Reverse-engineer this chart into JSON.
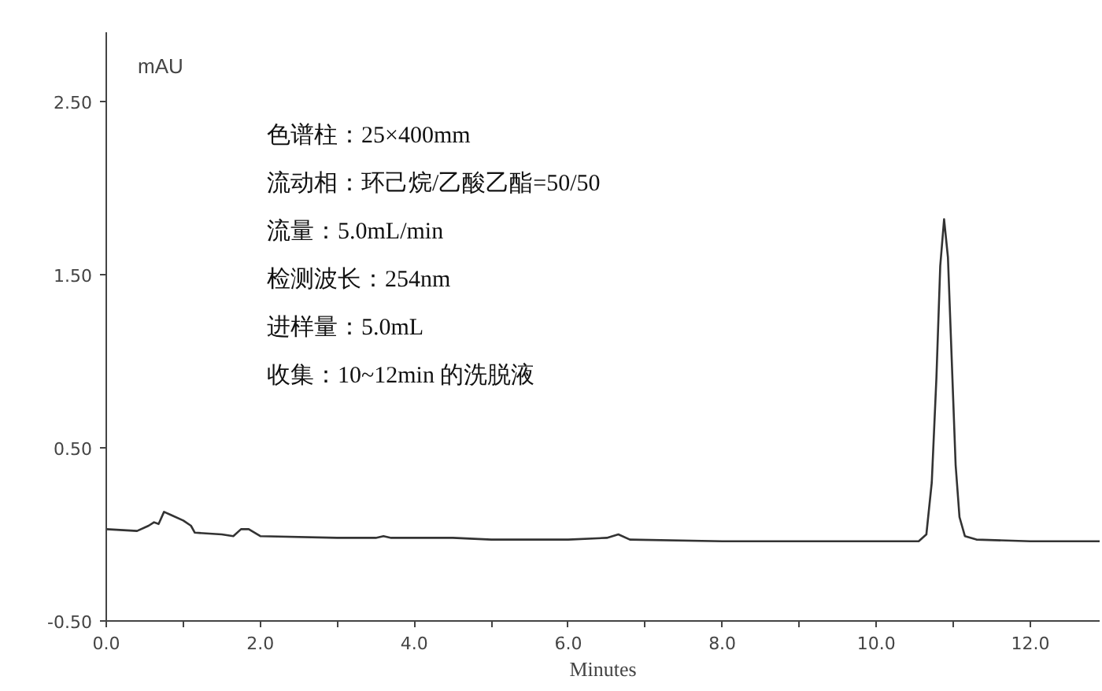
{
  "chart_data": {
    "type": "line",
    "xlabel": "Minutes",
    "ylabel": "mAU",
    "x": [
      0,
      0.4,
      0.55,
      0.62,
      0.68,
      0.75,
      0.85,
      1.0,
      1.1,
      1.15,
      1.5,
      1.65,
      1.75,
      1.85,
      2.0,
      3.0,
      3.5,
      3.6,
      3.7,
      4.5,
      5.0,
      6.0,
      6.5,
      6.65,
      6.8,
      8.0,
      10.0,
      10.55,
      10.65,
      10.72,
      10.78,
      10.83,
      10.88,
      10.93,
      10.98,
      11.03,
      11.08,
      11.15,
      11.3,
      12.0,
      12.9
    ],
    "series": [
      {
        "color": "#333333",
        "values": [
          0.03,
          0.02,
          0.05,
          0.07,
          0.06,
          0.13,
          0.11,
          0.08,
          0.05,
          0.01,
          0.0,
          -0.01,
          0.03,
          0.03,
          -0.01,
          -0.02,
          -0.02,
          -0.01,
          -0.02,
          -0.02,
          -0.03,
          -0.03,
          -0.02,
          0.0,
          -0.03,
          -0.04,
          -0.04,
          -0.04,
          0.0,
          0.3,
          0.9,
          1.55,
          1.82,
          1.6,
          1.0,
          0.4,
          0.1,
          -0.01,
          -0.03,
          -0.04,
          -0.04
        ]
      }
    ],
    "xlim": [
      0,
      12.9
    ],
    "ylim": [
      -0.5,
      2.9
    ],
    "xticks": [
      {
        "value": 0,
        "label": "0.0"
      },
      {
        "value": 1,
        "label": null
      },
      {
        "value": 2,
        "label": "2.0"
      },
      {
        "value": 3,
        "label": null
      },
      {
        "value": 4,
        "label": "4.0"
      },
      {
        "value": 5,
        "label": null
      },
      {
        "value": 6,
        "label": "6.0"
      },
      {
        "value": 7,
        "label": null
      },
      {
        "value": 8,
        "label": "8.0"
      },
      {
        "value": 9,
        "label": null
      },
      {
        "value": 10,
        "label": "10.0"
      },
      {
        "value": 11,
        "label": null
      },
      {
        "value": 12,
        "label": "12.0"
      }
    ],
    "yticks": [
      {
        "value": -0.5,
        "label": "-0.50"
      },
      {
        "value": 0.5,
        "label": "0.50"
      },
      {
        "value": 1.5,
        "label": "1.50"
      },
      {
        "value": 2.5,
        "label": "2.50"
      }
    ],
    "annotations": [
      "色谱柱：25×400mm",
      "流动相：环己烷/乙酸乙酯=50/50",
      "流量：5.0mL/min",
      "检测波长：254nm",
      "进样量：5.0mL",
      "收集：10~12min 的洗脱液"
    ],
    "grid": false,
    "line_style": "solid",
    "marker": "none"
  }
}
